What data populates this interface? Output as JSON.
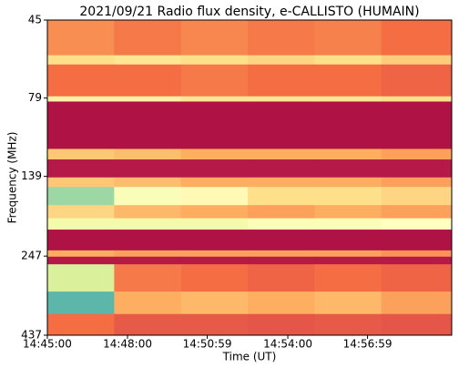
{
  "chart_data": {
    "type": "heatmap",
    "title": "2021/09/21  Radio flux density, e-CALLISTO (HUMAIN)",
    "xlabel": "Time (UT)",
    "ylabel": "Frequency (MHz)",
    "xlim": [
      53100,
      54008
    ],
    "xticks": [
      {
        "value": 53100,
        "label": "14:45:00"
      },
      {
        "value": 53280,
        "label": "14:48:00"
      },
      {
        "value": 53459,
        "label": "14:50:59"
      },
      {
        "value": 53640,
        "label": "14:54:00"
      },
      {
        "value": 53819,
        "label": "14:56:59"
      }
    ],
    "ylim": [
      45,
      437
    ],
    "yticks": [
      45,
      79,
      139,
      247,
      437
    ],
    "log_y": true,
    "y_inverted": true,
    "xbins": [
      53100,
      53250,
      53400,
      53550,
      53700,
      53850,
      54008
    ],
    "ybins": [
      45,
      58,
      62,
      78,
      81,
      114,
      123,
      140,
      150,
      171,
      188,
      204,
      237,
      248,
      262,
      319,
      375,
      437
    ],
    "z": [
      [
        0.25,
        0.22,
        0.24,
        0.22,
        0.23,
        0.2
      ],
      [
        0.4,
        0.42,
        0.4,
        0.38,
        0.4,
        0.36
      ],
      [
        0.2,
        0.2,
        0.22,
        0.2,
        0.2,
        0.18
      ],
      [
        0.45,
        0.45,
        0.42,
        0.42,
        0.42,
        0.4
      ],
      [
        0.03,
        0.03,
        0.03,
        0.03,
        0.03,
        0.03
      ],
      [
        0.35,
        0.33,
        0.3,
        0.3,
        0.3,
        0.28
      ],
      [
        0.04,
        0.04,
        0.04,
        0.04,
        0.04,
        0.04
      ],
      [
        0.35,
        0.33,
        0.3,
        0.3,
        0.3,
        0.28
      ],
      [
        0.72,
        0.52,
        0.48,
        0.4,
        0.4,
        0.38
      ],
      [
        0.38,
        0.32,
        0.3,
        0.28,
        0.3,
        0.28
      ],
      [
        0.55,
        0.55,
        0.55,
        0.52,
        0.52,
        0.5
      ],
      [
        0.03,
        0.03,
        0.03,
        0.03,
        0.03,
        0.03
      ],
      [
        0.3,
        0.28,
        0.28,
        0.28,
        0.28,
        0.26
      ],
      [
        0.04,
        0.04,
        0.04,
        0.04,
        0.04,
        0.04
      ],
      [
        0.62,
        0.22,
        0.2,
        0.18,
        0.2,
        0.18
      ],
      [
        0.82,
        0.3,
        0.32,
        0.3,
        0.32,
        0.28
      ],
      [
        0.2,
        0.16,
        0.16,
        0.15,
        0.16,
        0.15
      ]
    ],
    "clim": [
      0,
      1
    ],
    "colormap": [
      "#9e0142",
      "#d53e4f",
      "#f46d43",
      "#fdae61",
      "#fee08b",
      "#ffffbf",
      "#e6f598",
      "#abdda4",
      "#66c2a5",
      "#3288bd",
      "#5e4fa2"
    ]
  }
}
